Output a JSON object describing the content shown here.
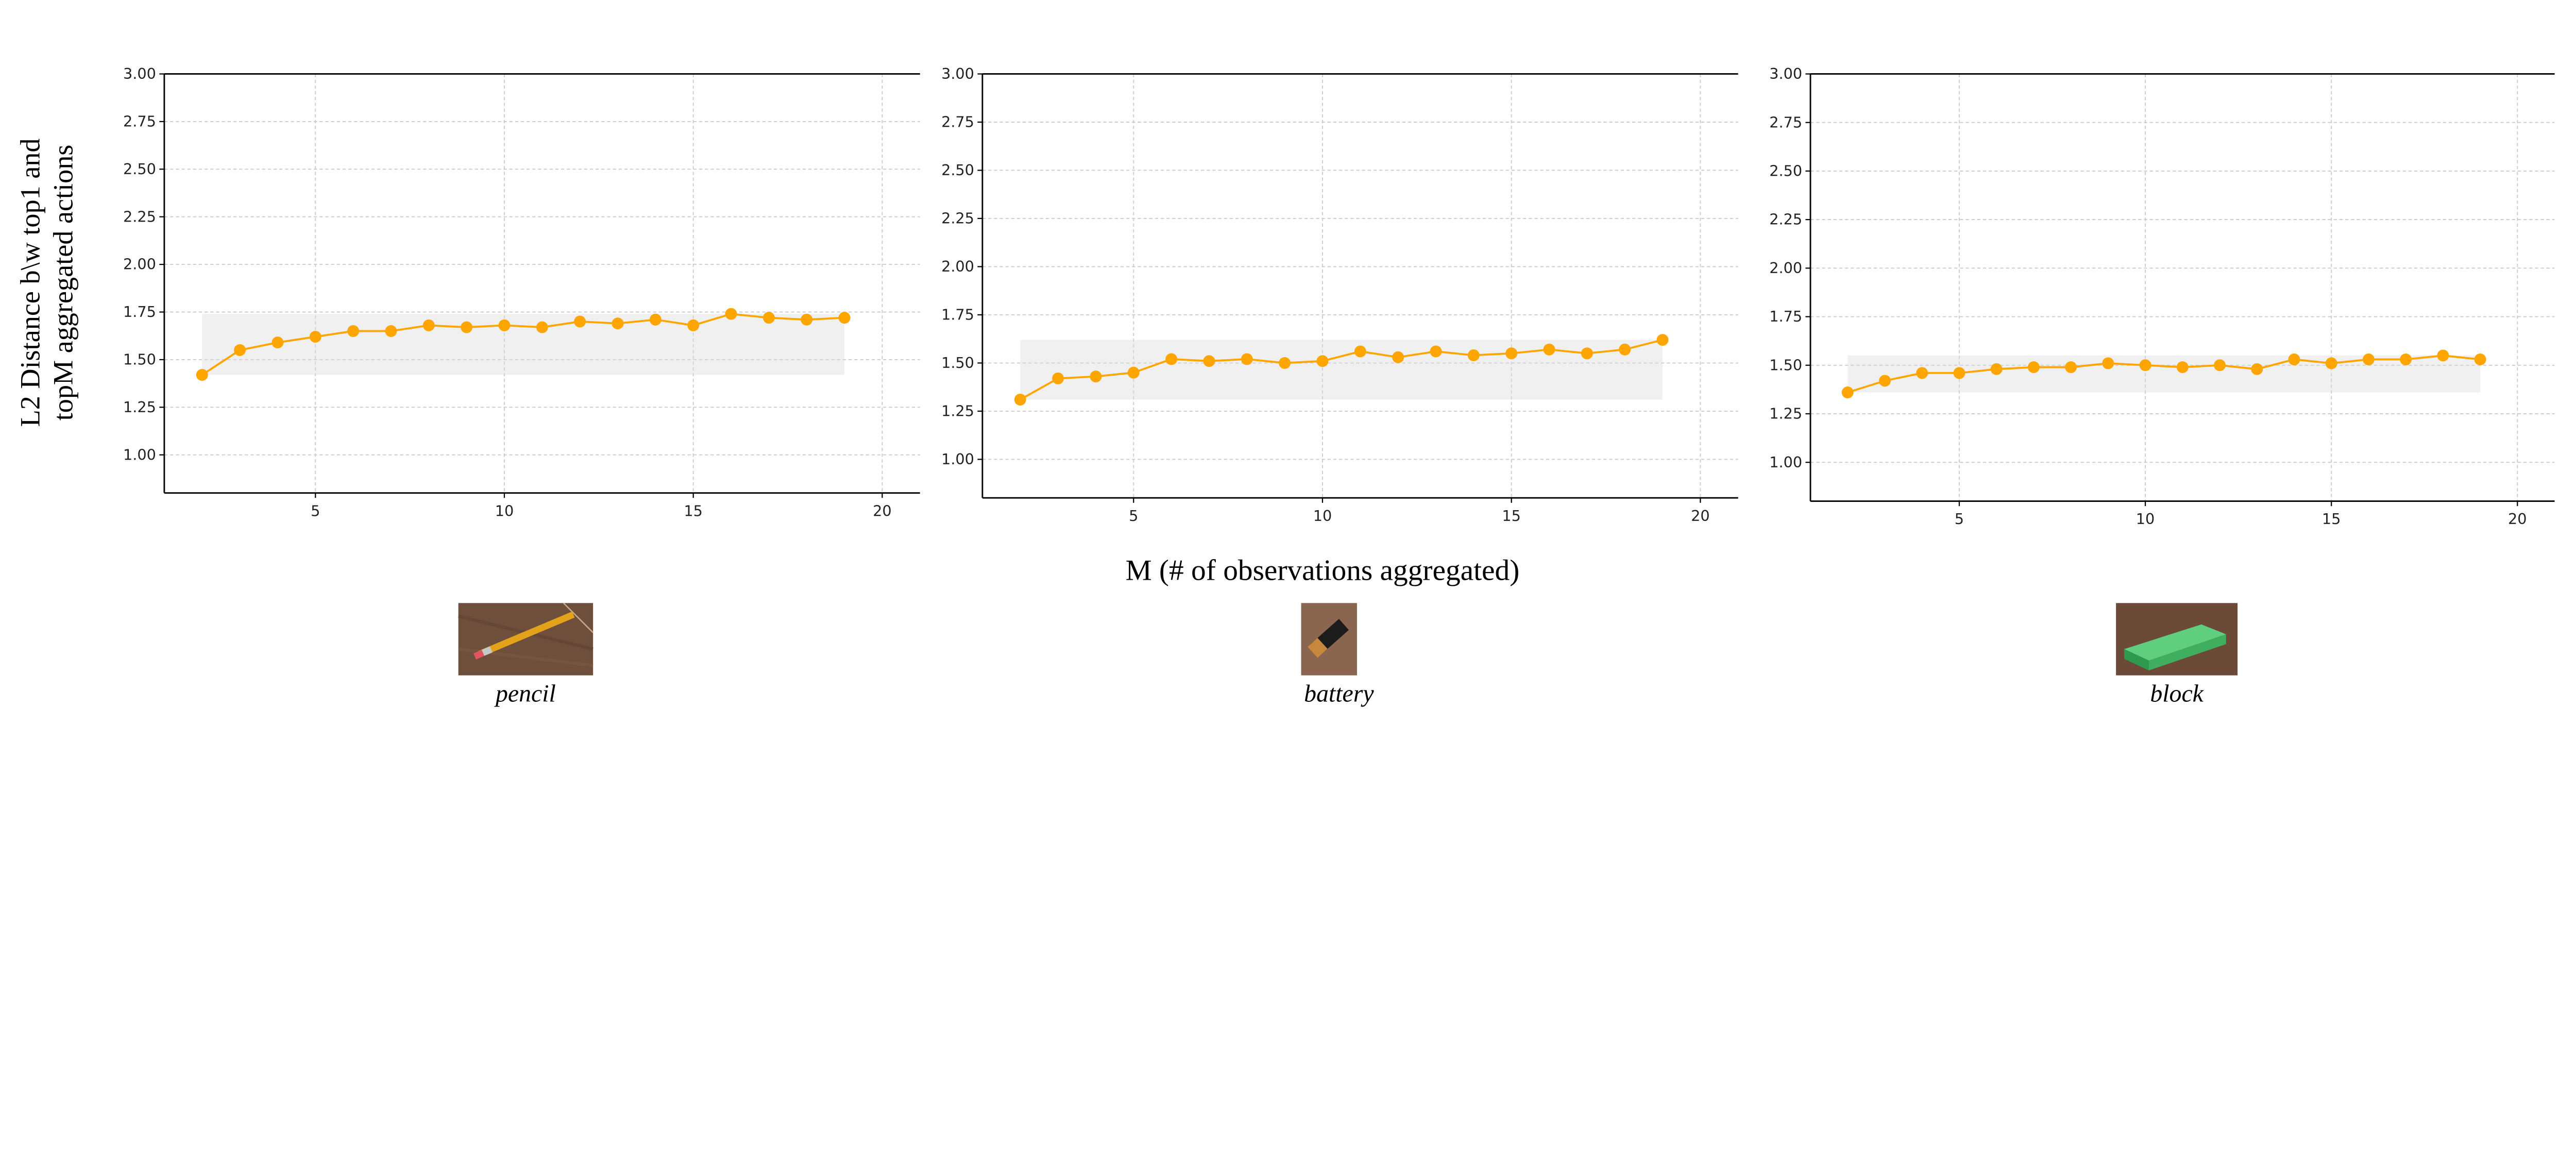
{
  "ylabel_lines": [
    "L2 Distance b\\w top1 and",
    "topM aggregated actions"
  ],
  "xlabel": "M (# of observations aggregated)",
  "colors": {
    "line": "#FFA500",
    "band": "#D9D9D9",
    "grid": "#CCCCCC",
    "axis": "#000000"
  },
  "chart_data": [
    {
      "type": "line",
      "object_label": "pencil",
      "object_image": "pencil-photo",
      "x": [
        2,
        3,
        4,
        5,
        6,
        7,
        8,
        9,
        10,
        11,
        12,
        13,
        14,
        15,
        16,
        17,
        18,
        19
      ],
      "series": [
        {
          "values": [
            1.42,
            1.55,
            1.59,
            1.62,
            1.65,
            1.65,
            1.68,
            1.67,
            1.68,
            1.67,
            1.7,
            1.69,
            1.71,
            1.68,
            1.74,
            1.72,
            1.71,
            1.72
          ]
        }
      ],
      "band": {
        "x": [
          2,
          19
        ],
        "y": [
          1.42,
          1.74
        ]
      },
      "xlim": [
        1,
        21
      ],
      "ylim": [
        0.8,
        3.0
      ],
      "xticks": [
        5,
        10,
        15,
        20
      ],
      "yticks": [
        "1.00",
        "1.25",
        "1.50",
        "1.75",
        "2.00",
        "2.25",
        "2.50",
        "2.75",
        "3.00"
      ],
      "grid": true
    },
    {
      "type": "line",
      "object_label": "battery",
      "object_image": "battery-photo",
      "x": [
        2,
        3,
        4,
        5,
        6,
        7,
        8,
        9,
        10,
        11,
        12,
        13,
        14,
        15,
        16,
        17,
        18,
        19
      ],
      "series": [
        {
          "values": [
            1.31,
            1.42,
            1.43,
            1.45,
            1.52,
            1.51,
            1.52,
            1.5,
            1.51,
            1.56,
            1.53,
            1.56,
            1.54,
            1.55,
            1.57,
            1.55,
            1.57,
            1.62
          ]
        }
      ],
      "band": {
        "x": [
          2,
          19
        ],
        "y": [
          1.31,
          1.62
        ]
      },
      "xlim": [
        1,
        21
      ],
      "ylim": [
        0.8,
        3.0
      ],
      "xticks": [
        5,
        10,
        15,
        20
      ],
      "yticks": [
        "1.00",
        "1.25",
        "1.50",
        "1.75",
        "2.00",
        "2.25",
        "2.50",
        "2.75",
        "3.00"
      ],
      "grid": true
    },
    {
      "type": "line",
      "object_label": "block",
      "object_image": "block-photo",
      "x": [
        2,
        3,
        4,
        5,
        6,
        7,
        8,
        9,
        10,
        11,
        12,
        13,
        14,
        15,
        16,
        17,
        18,
        19
      ],
      "series": [
        {
          "values": [
            1.36,
            1.42,
            1.46,
            1.46,
            1.48,
            1.49,
            1.49,
            1.51,
            1.5,
            1.49,
            1.5,
            1.48,
            1.53,
            1.51,
            1.53,
            1.53,
            1.55,
            1.53
          ]
        }
      ],
      "band": {
        "x": [
          2,
          19
        ],
        "y": [
          1.36,
          1.55
        ]
      },
      "xlim": [
        1,
        21
      ],
      "ylim": [
        0.8,
        3.0
      ],
      "xticks": [
        5,
        10,
        15,
        20
      ],
      "yticks": [
        "1.00",
        "1.25",
        "1.50",
        "1.75",
        "2.00",
        "2.25",
        "2.50",
        "2.75",
        "3.00"
      ],
      "grid": true
    }
  ]
}
